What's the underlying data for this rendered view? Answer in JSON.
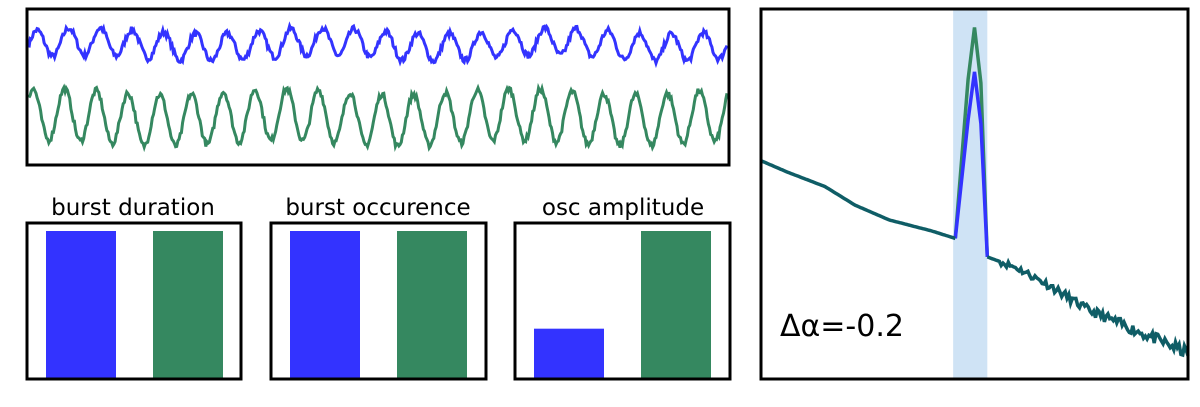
{
  "colors": {
    "blue": "#3333ff",
    "green": "#358860",
    "teal": "#0f5d66",
    "band": "#cfe3f5",
    "frame": "#000000"
  },
  "chart_data": [
    {
      "type": "line",
      "panel": "time-series",
      "series": [
        {
          "color": "blue",
          "baseline": 0.78,
          "amplitude": 0.09,
          "cycles": 22
        },
        {
          "color": "green",
          "baseline": 0.3,
          "amplitude": 0.17,
          "cycles": 22
        }
      ]
    },
    {
      "type": "bar",
      "title": "burst duration",
      "values": [
        1.0,
        1.0
      ],
      "colors": [
        "blue",
        "green"
      ]
    },
    {
      "type": "bar",
      "title": "burst occurence",
      "values": [
        1.0,
        1.0
      ],
      "colors": [
        "blue",
        "green"
      ]
    },
    {
      "type": "bar",
      "title": "osc amplitude",
      "values": [
        0.34,
        1.0
      ],
      "colors": [
        "blue",
        "green"
      ]
    },
    {
      "type": "line",
      "panel": "spectrum",
      "annotation": "Δα=-0.2",
      "highlight_band_x": [
        0.45,
        0.53
      ],
      "base_series": {
        "color": "teal",
        "x": [
          0.0,
          0.06,
          0.15,
          0.22,
          0.3,
          0.4,
          0.455,
          0.53,
          0.6,
          0.68,
          0.76,
          0.84,
          0.92,
          1.0
        ],
        "y": [
          0.59,
          0.56,
          0.52,
          0.47,
          0.43,
          0.4,
          0.38,
          0.33,
          0.3,
          0.25,
          0.19,
          0.15,
          0.11,
          0.07
        ]
      },
      "peak_series": [
        {
          "color": "green",
          "x": [
            0.455,
            0.485,
            0.5,
            0.515,
            0.53
          ],
          "y": [
            0.38,
            0.81,
            0.95,
            0.8,
            0.33
          ]
        },
        {
          "color": "blue",
          "x": [
            0.455,
            0.485,
            0.5,
            0.515,
            0.53
          ],
          "y": [
            0.38,
            0.7,
            0.83,
            0.69,
            0.33
          ]
        }
      ]
    }
  ]
}
